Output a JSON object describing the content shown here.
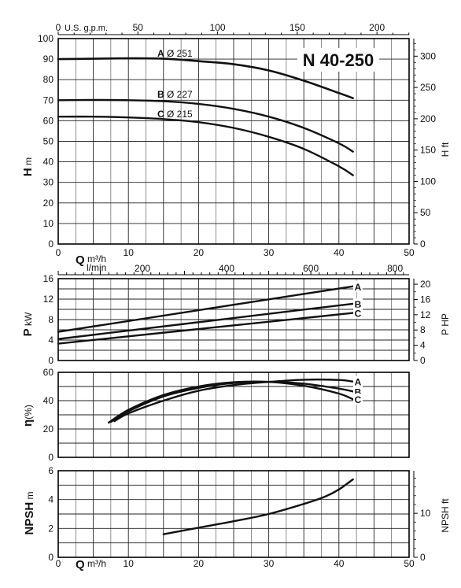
{
  "chart_data": [
    {
      "type": "line",
      "title": "N 40-250",
      "xlabel": "Q",
      "xunit": "m³/h",
      "ylabel": "H",
      "yunit": "m",
      "y2label": "H",
      "y2unit": "ft",
      "top_axis_label": "U.S. g.p.m.",
      "xlim": [
        0,
        50
      ],
      "ylim": [
        0,
        100
      ],
      "xticks": [
        "0",
        "10",
        "20",
        "30",
        "40",
        "50"
      ],
      "yticks": [
        "0",
        "10",
        "20",
        "30",
        "40",
        "50",
        "60",
        "70",
        "80",
        "90",
        "100"
      ],
      "top_ticks": [
        "0",
        "50",
        "100",
        "150",
        "200"
      ],
      "y2ticks": [
        "0",
        "50",
        "100",
        "150",
        "200",
        "250",
        "300"
      ],
      "grid": true,
      "series": [
        {
          "name": "A",
          "label": "Ø 251",
          "x": [
            0,
            5,
            10,
            15,
            20,
            25,
            30,
            35,
            40,
            42
          ],
          "y": [
            90,
            90.2,
            90.4,
            90.2,
            89,
            87.5,
            84.5,
            79.5,
            73.5,
            71
          ]
        },
        {
          "name": "B",
          "label": "Ø 227",
          "x": [
            0,
            5,
            10,
            15,
            20,
            25,
            30,
            35,
            40,
            42
          ],
          "y": [
            70,
            70.1,
            70,
            69.5,
            68.2,
            65.8,
            62,
            56.5,
            49,
            45
          ]
        },
        {
          "name": "C",
          "label": "Ø 215",
          "x": [
            0,
            5,
            10,
            15,
            20,
            25,
            30,
            35,
            40,
            42
          ],
          "y": [
            62,
            62,
            61.6,
            60.8,
            59.3,
            56.5,
            52.2,
            46.3,
            37.8,
            33.5
          ]
        }
      ]
    },
    {
      "type": "line",
      "xlabel": "",
      "top_axis_label": "l/min",
      "ylabel": "P",
      "yunit": "kW",
      "y2label": "P",
      "y2unit": "HP",
      "xlim": [
        0,
        50
      ],
      "ylim": [
        0,
        16
      ],
      "top_ticks": [
        "200",
        "400",
        "600",
        "800"
      ],
      "yticks": [
        "0",
        "4",
        "8",
        "12",
        "16"
      ],
      "y2ticks": [
        "0",
        "4",
        "8",
        "12",
        "16",
        "20"
      ],
      "grid": true,
      "series": [
        {
          "name": "A",
          "x": [
            0,
            42
          ],
          "y": [
            5.6,
            14.5
          ]
        },
        {
          "name": "B",
          "x": [
            0,
            42
          ],
          "y": [
            4.2,
            11.1
          ]
        },
        {
          "name": "C",
          "x": [
            0,
            42
          ],
          "y": [
            3.3,
            9.3
          ]
        }
      ]
    },
    {
      "type": "line",
      "ylabel": "η",
      "yunit": "(%)",
      "xlim": [
        0,
        50
      ],
      "ylim": [
        0,
        60
      ],
      "yticks": [
        "0",
        "20",
        "40",
        "60"
      ],
      "grid": true,
      "series": [
        {
          "name": "A",
          "x": [
            8,
            10,
            15,
            20,
            25,
            30,
            35,
            40,
            42
          ],
          "y": [
            25.5,
            31,
            40,
            47,
            51,
            53.2,
            54.8,
            54.6,
            53.5
          ]
        },
        {
          "name": "B",
          "x": [
            7.5,
            10,
            15,
            20,
            25,
            30,
            35,
            40,
            42
          ],
          "y": [
            25,
            32.5,
            43,
            49,
            52.5,
            53.3,
            52,
            48.5,
            46.5
          ]
        },
        {
          "name": "C",
          "x": [
            7.2,
            10,
            15,
            20,
            25,
            30,
            35,
            40,
            42
          ],
          "y": [
            24.5,
            33.5,
            44,
            50,
            53,
            53.2,
            50.5,
            45,
            41
          ]
        }
      ]
    },
    {
      "type": "line",
      "xlabel": "Q",
      "xunit": "m³/h",
      "ylabel": "NPSH",
      "yunit": "m",
      "y2label": "NPSH",
      "y2unit": "ft",
      "xlim": [
        0,
        50
      ],
      "ylim": [
        0,
        6
      ],
      "xticks": [
        "0",
        "10",
        "20",
        "30",
        "40",
        "50"
      ],
      "yticks": [
        "0",
        "2",
        "4",
        "6"
      ],
      "y2ticks": [
        "0",
        "10"
      ],
      "grid": true,
      "series": [
        {
          "x": [
            15,
            20,
            25,
            30,
            35,
            38,
            40,
            42
          ],
          "y": [
            1.6,
            2.05,
            2.5,
            3.0,
            3.7,
            4.2,
            4.7,
            5.4
          ]
        }
      ]
    }
  ]
}
